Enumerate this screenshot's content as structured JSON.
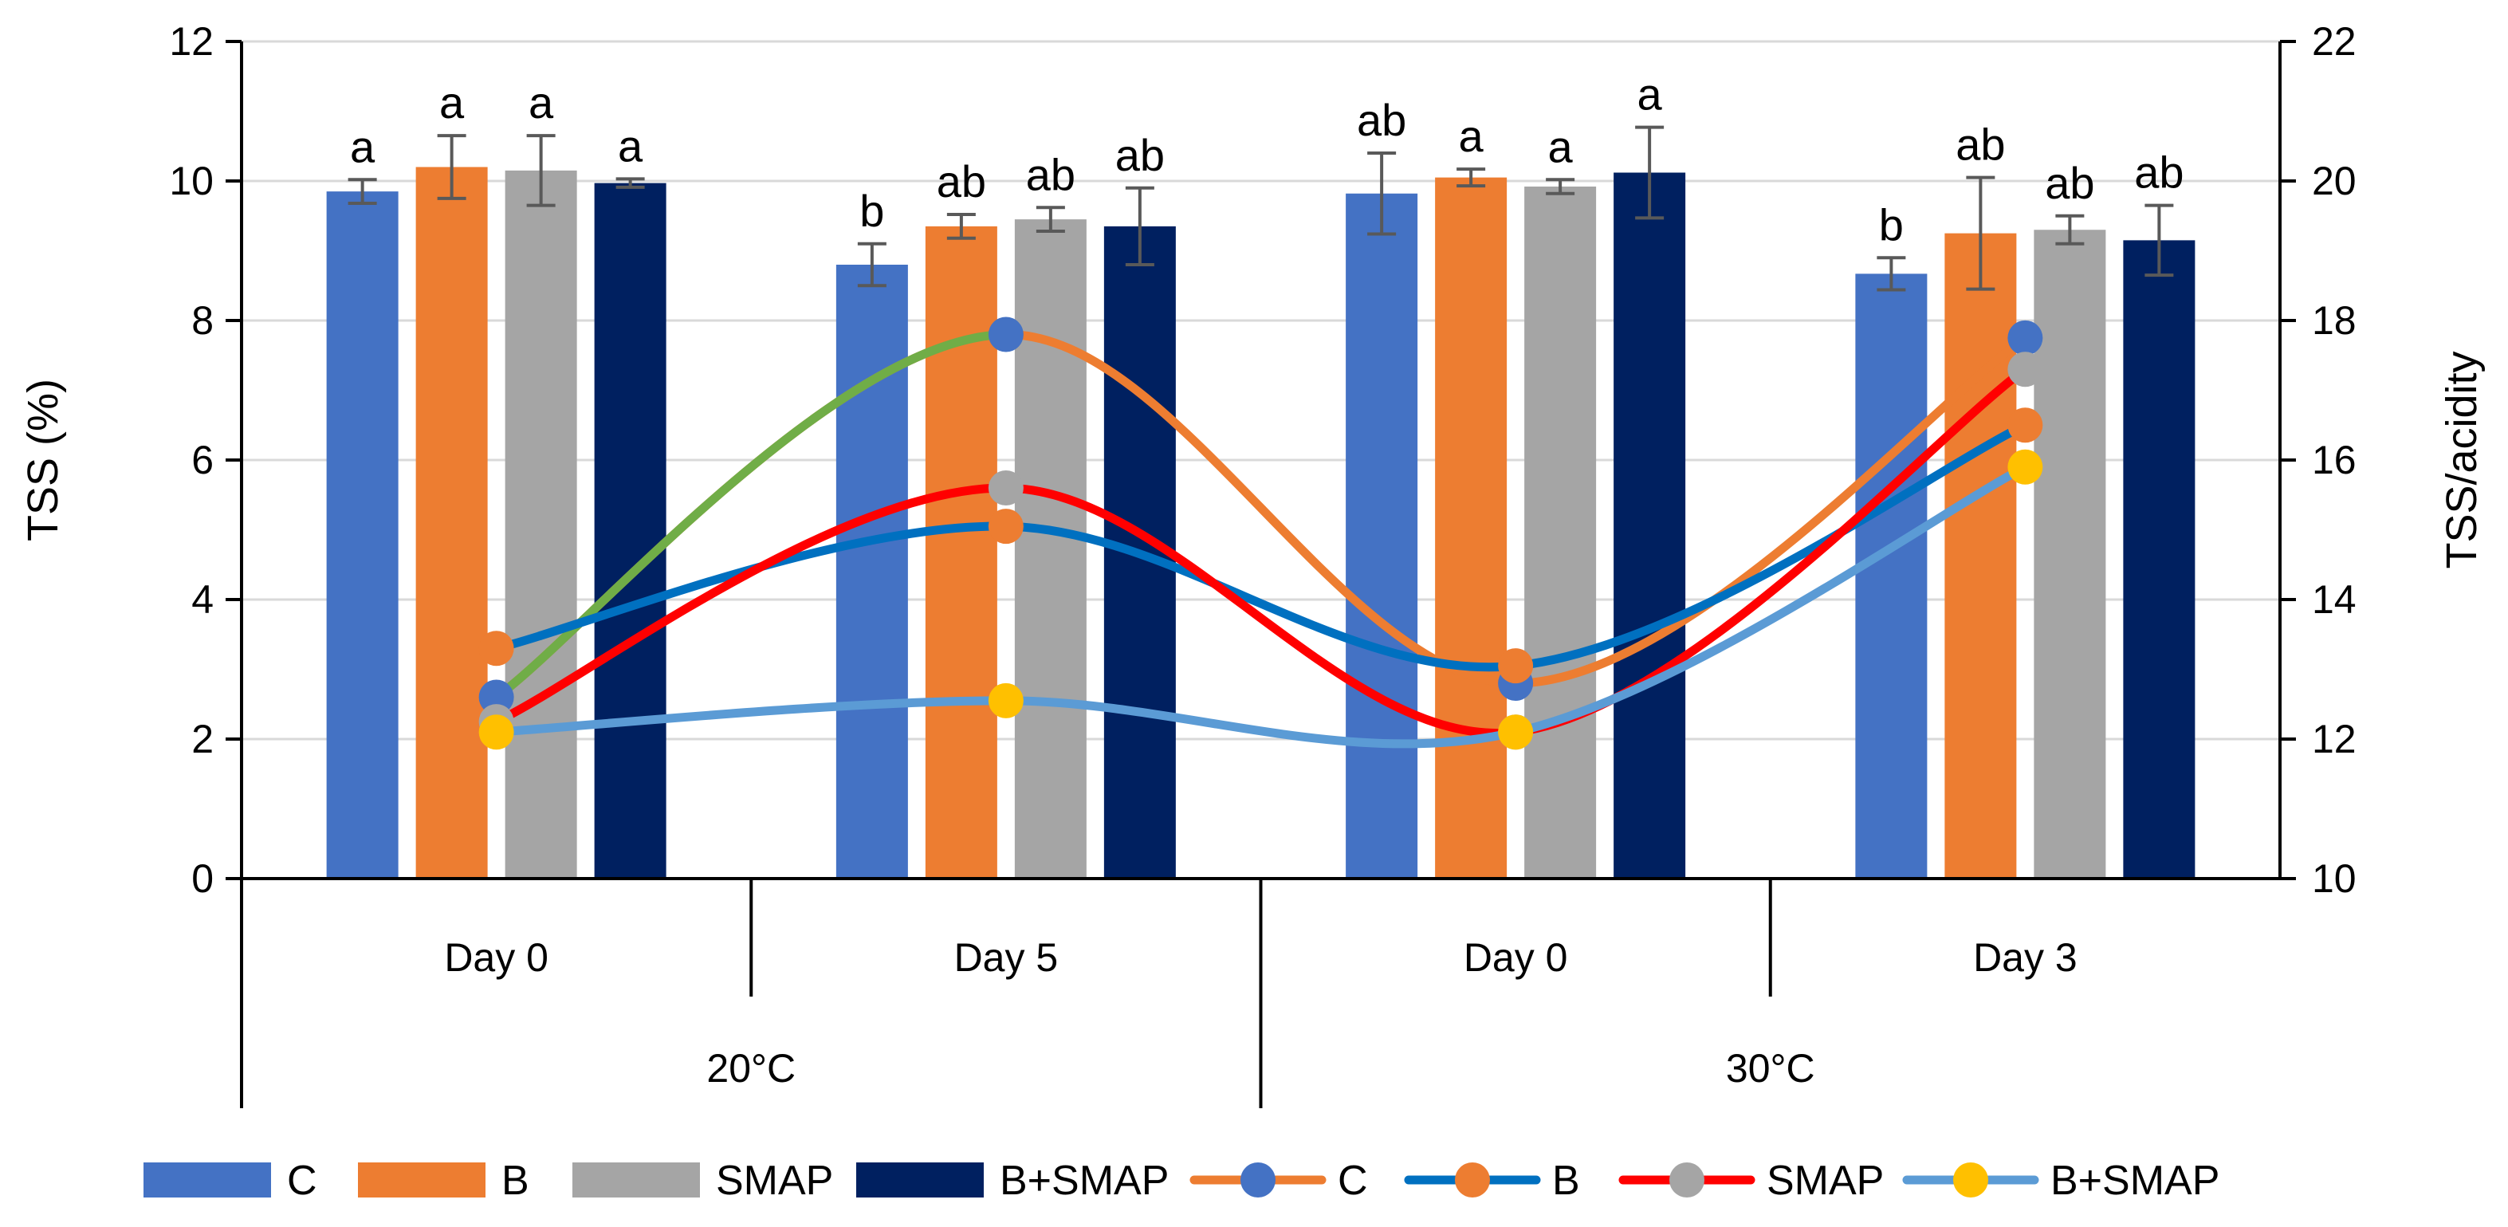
{
  "chart_data": {
    "type": "bar+line",
    "y_left": {
      "label": "TSS (%)",
      "ylim": [
        0,
        12
      ],
      "ticks": [
        0,
        2,
        4,
        6,
        8,
        10,
        12
      ]
    },
    "y_right": {
      "label": "TSS/acidity",
      "ylim": [
        10,
        22
      ],
      "ticks": [
        10,
        12,
        14,
        16,
        18,
        20,
        22
      ]
    },
    "categories": [
      "Day 0",
      "Day 5",
      "Day 0",
      "Day 3"
    ],
    "groups": [
      {
        "label": "20°C",
        "span": [
          0,
          1
        ]
      },
      {
        "label": "30°C",
        "span": [
          2,
          3
        ]
      }
    ],
    "bar_series": [
      {
        "name": "C",
        "color": "#4472C4",
        "values": [
          9.85,
          8.8,
          9.82,
          8.67
        ],
        "errors": [
          0.17,
          0.3,
          0.58,
          0.23
        ],
        "letters": [
          "a",
          "b",
          "ab",
          "b"
        ]
      },
      {
        "name": "B",
        "color": "#ED7D31",
        "values": [
          10.2,
          9.35,
          10.05,
          9.25
        ],
        "errors": [
          0.45,
          0.17,
          0.12,
          0.8
        ],
        "letters": [
          "a",
          "ab",
          "a",
          "ab"
        ]
      },
      {
        "name": "SMAP",
        "color": "#A5A5A5",
        "values": [
          10.15,
          9.45,
          9.92,
          9.3
        ],
        "errors": [
          0.5,
          0.17,
          0.1,
          0.2
        ],
        "letters": [
          "a",
          "ab",
          "a",
          "ab"
        ]
      },
      {
        "name": "B+SMAP",
        "color": "#002060",
        "values": [
          9.97,
          9.35,
          10.12,
          9.15
        ],
        "errors": [
          0.06,
          0.55,
          0.65,
          0.5
        ],
        "letters": [
          "a",
          "ab",
          "a",
          "ab"
        ]
      }
    ],
    "line_series": [
      {
        "name": "C",
        "line_color": "#ED7D31",
        "marker_color": "#4472C4",
        "values": [
          12.6,
          17.8,
          12.8,
          17.75
        ],
        "first_segment_color": "#70AD47"
      },
      {
        "name": "B",
        "line_color": "#0070C0",
        "marker_color": "#ED7D31",
        "values": [
          13.3,
          15.05,
          13.05,
          16.5
        ]
      },
      {
        "name": "SMAP",
        "line_color": "#FF0000",
        "marker_color": "#A5A5A5",
        "values": [
          12.25,
          15.6,
          12.1,
          17.3
        ]
      },
      {
        "name": "B+SMAP",
        "line_color": "#5B9BD5",
        "marker_color": "#FFC000",
        "values": [
          12.1,
          12.55,
          12.1,
          15.9
        ]
      }
    ]
  }
}
